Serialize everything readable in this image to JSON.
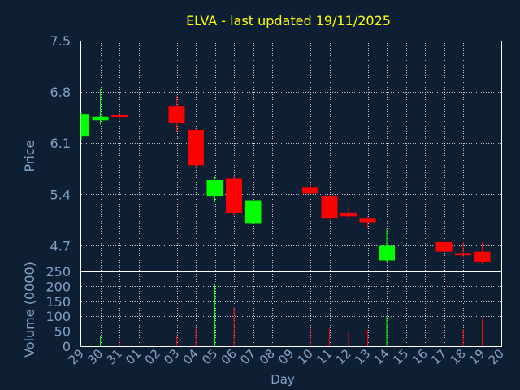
{
  "chart_data": {
    "type": "candlestick",
    "title": "ELVA - last updated 19/11/2025",
    "xlabel": "Day",
    "price_ylabel": "Price",
    "volume_ylabel": "Volume (0000)",
    "x_ticks": [
      "29",
      "30",
      "31",
      "01",
      "02",
      "03",
      "04",
      "05",
      "06",
      "07",
      "08",
      "09",
      "10",
      "11",
      "12",
      "13",
      "14",
      "15",
      "16",
      "17",
      "18",
      "19",
      "20"
    ],
    "price_ylim": [
      4.35,
      7.5
    ],
    "price_ticks": [
      "7.5",
      "6.8",
      "6.1",
      "5.4",
      "4.7"
    ],
    "price_tick_values": [
      7.5,
      6.8,
      6.1,
      5.4,
      4.7
    ],
    "volume_ylim": [
      0,
      250
    ],
    "volume_ticks": [
      "250",
      "200",
      "150",
      "100",
      "50",
      "0"
    ],
    "volume_tick_values": [
      250,
      200,
      150,
      100,
      50,
      0
    ],
    "grid": true,
    "colors": {
      "up": "#00ff00",
      "down": "#ff0000",
      "background": "#0f1f33",
      "grid": "#ffffff",
      "title": "#ffff00",
      "axis_text": "#7fa3c8"
    },
    "candles": [
      {
        "day": "29",
        "open": 6.2,
        "high": 6.52,
        "low": 6.15,
        "close": 6.5
      },
      {
        "day": "30",
        "open": 6.41,
        "high": 6.84,
        "low": 6.35,
        "close": 6.46
      },
      {
        "day": "31",
        "open": 6.48,
        "high": 6.53,
        "low": 6.4,
        "close": 6.46
      },
      {
        "day": "03",
        "open": 6.6,
        "high": 6.75,
        "low": 6.25,
        "close": 6.38
      },
      {
        "day": "04",
        "open": 6.28,
        "high": 6.3,
        "low": 5.75,
        "close": 5.8
      },
      {
        "day": "05",
        "open": 5.38,
        "high": 5.64,
        "low": 5.3,
        "close": 5.6
      },
      {
        "day": "06",
        "open": 5.62,
        "high": 5.66,
        "low": 5.12,
        "close": 5.15
      },
      {
        "day": "07",
        "open": 5.0,
        "high": 5.34,
        "low": 4.99,
        "close": 5.32
      },
      {
        "day": "10",
        "open": 5.5,
        "high": 5.56,
        "low": 5.4,
        "close": 5.41
      },
      {
        "day": "11",
        "open": 5.38,
        "high": 5.4,
        "low": 5.05,
        "close": 5.08
      },
      {
        "day": "12",
        "open": 5.15,
        "high": 5.23,
        "low": 5.05,
        "close": 5.1
      },
      {
        "day": "13",
        "open": 5.08,
        "high": 5.1,
        "low": 4.94,
        "close": 5.02
      },
      {
        "day": "14",
        "open": 4.5,
        "high": 4.93,
        "low": 4.48,
        "close": 4.7
      },
      {
        "day": "17",
        "open": 4.75,
        "high": 5.0,
        "low": 4.6,
        "close": 4.62
      },
      {
        "day": "18",
        "open": 4.6,
        "high": 4.75,
        "low": 4.55,
        "close": 4.57
      },
      {
        "day": "19",
        "open": 4.62,
        "high": 4.75,
        "low": 4.45,
        "close": 4.48
      }
    ],
    "volume": [
      {
        "day": "29",
        "value": 0
      },
      {
        "day": "30",
        "value": 35
      },
      {
        "day": "31",
        "value": 25
      },
      {
        "day": "03",
        "value": 35
      },
      {
        "day": "04",
        "value": 60
      },
      {
        "day": "05",
        "value": 210
      },
      {
        "day": "06",
        "value": 130
      },
      {
        "day": "07",
        "value": 110
      },
      {
        "day": "10",
        "value": 60
      },
      {
        "day": "11",
        "value": 60
      },
      {
        "day": "12",
        "value": 50
      },
      {
        "day": "13",
        "value": 55
      },
      {
        "day": "14",
        "value": 100
      },
      {
        "day": "17",
        "value": 60
      },
      {
        "day": "18",
        "value": 55
      },
      {
        "day": "19",
        "value": 90
      }
    ]
  }
}
